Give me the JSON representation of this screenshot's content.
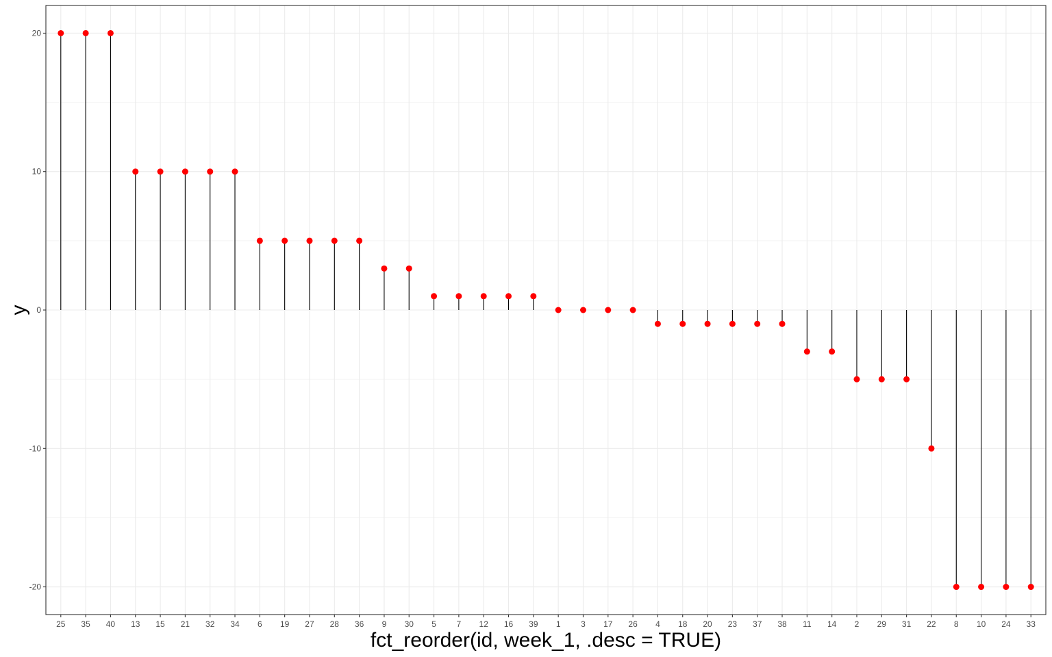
{
  "chart_data": {
    "type": "lollipop",
    "categories": [
      "25",
      "35",
      "40",
      "13",
      "15",
      "21",
      "32",
      "34",
      "6",
      "19",
      "27",
      "28",
      "36",
      "9",
      "30",
      "5",
      "7",
      "12",
      "16",
      "39",
      "1",
      "3",
      "17",
      "26",
      "4",
      "18",
      "20",
      "23",
      "37",
      "38",
      "11",
      "14",
      "2",
      "29",
      "31",
      "22",
      "8",
      "10",
      "24",
      "33"
    ],
    "values": [
      20,
      20,
      20,
      10,
      10,
      10,
      10,
      10,
      5,
      5,
      5,
      5,
      5,
      3,
      3,
      1,
      1,
      1,
      1,
      1,
      0,
      0,
      0,
      0,
      -1,
      -1,
      -1,
      -1,
      -1,
      -1,
      -3,
      -3,
      -5,
      -5,
      -5,
      -10,
      -20,
      -20,
      -20,
      -20
    ],
    "xlabel": "fct_reorder(id, week_1, .desc = TRUE)",
    "ylabel": "y",
    "ylim": [
      -22,
      22
    ],
    "y_ticks": [
      -20,
      -10,
      0,
      10,
      20
    ],
    "grid": true,
    "baseline": 0,
    "colors": {
      "point": "#ff0000",
      "stem": "#000000",
      "grid_major": "#ebebeb",
      "grid_minor": "#f2f2f2",
      "panel_border": "#333333"
    }
  }
}
